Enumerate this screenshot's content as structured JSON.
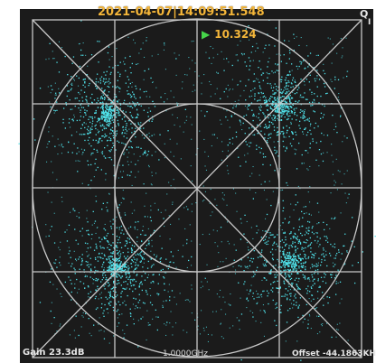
{
  "header": {
    "timestamp": "2021-04-07|14:09:51.548",
    "marker_icon": "green-triangle-marker",
    "marker_value": "10.324"
  },
  "axes": {
    "q_label": "Q",
    "i_label": "I"
  },
  "footer": {
    "gain": "Gain 23.3dB",
    "frequency": "1.0000GHz",
    "offset": "Offset -44.1863KH"
  },
  "colors": {
    "background": "#1b1b1b",
    "grid": "#c8c8c8",
    "points": "#4fe0e8",
    "timestamp": "#f4b63a",
    "marker": "#46d64a"
  },
  "constellation": {
    "type": "QPSK",
    "cluster_centers_label": "four symbol clusters, one per quadrant"
  }
}
